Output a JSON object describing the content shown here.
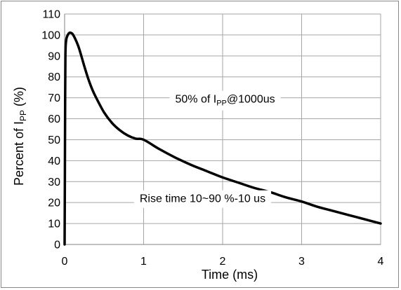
{
  "chart_data": {
    "type": "line",
    "xlabel": "Time (ms)",
    "ylabel_parts": {
      "main": "Percent of I",
      "sub": "PP",
      "tail": " (%)"
    },
    "xlim": [
      0,
      4
    ],
    "ylim": [
      0,
      110
    ],
    "x_ticks": [
      "0",
      "1",
      "2",
      "3",
      "4"
    ],
    "y_ticks": [
      "0",
      "10",
      "20",
      "30",
      "40",
      "50",
      "60",
      "70",
      "80",
      "90",
      "100",
      "110"
    ],
    "grid": true,
    "series": [
      {
        "line_color": "#000000",
        "x": [
          0,
          0.003,
          0.006,
          0.01,
          0.02,
          0.04,
          0.06,
          0.08,
          0.1,
          0.13,
          0.17,
          0.2,
          0.25,
          0.3,
          0.35,
          0.4,
          0.5,
          0.6,
          0.7,
          0.8,
          0.9,
          1.0,
          1.2,
          1.4,
          1.6,
          1.8,
          2.0,
          2.2,
          2.4,
          2.6,
          2.8,
          3.0,
          3.2,
          3.4,
          3.6,
          3.8,
          4.0
        ],
        "y": [
          0,
          28,
          60,
          90,
          97.5,
          100,
          101,
          101,
          100.5,
          98.5,
          95,
          91.5,
          85,
          79,
          74,
          70,
          63,
          58,
          54.5,
          52,
          50.5,
          50,
          45.5,
          41.5,
          38,
          35,
          32,
          29.5,
          27,
          25,
          22.5,
          20.5,
          18,
          16,
          14,
          12,
          10
        ]
      }
    ],
    "annotations": [
      {
        "id": "top",
        "main": "50% of I",
        "sub": "PP",
        "tail": "@1000us",
        "anchor_x": 1.4,
        "anchor_y": 69.5
      },
      {
        "id": "bottom",
        "main": "Rise time 10~90 %-10 us",
        "sub": "",
        "tail": "",
        "anchor_x": 0.95,
        "anchor_y": 22
      }
    ]
  }
}
